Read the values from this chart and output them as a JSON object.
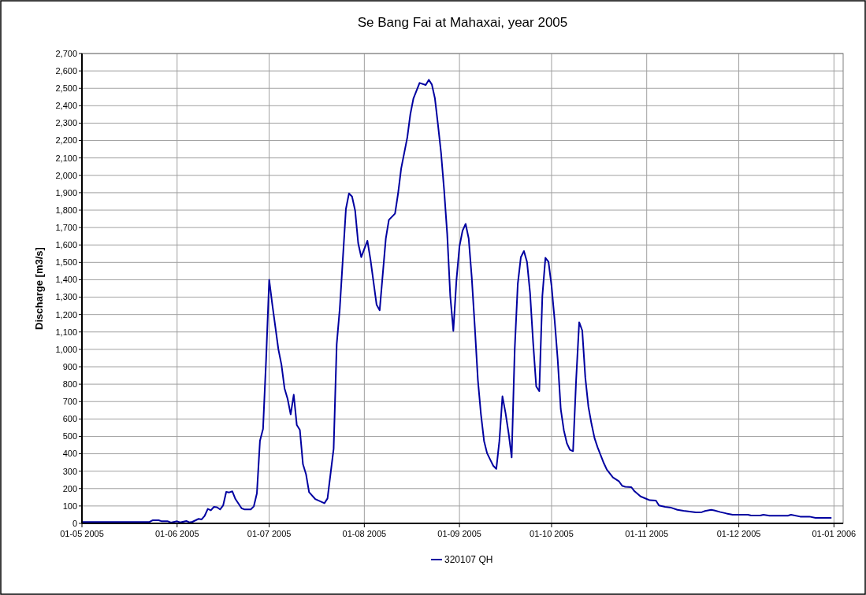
{
  "chart_data": {
    "type": "line",
    "title": "Se Bang Fai at Mahaxai, year 2005",
    "ylabel": "Discharge [m3/s]",
    "xlim": [
      "2005-05-01",
      "2006-01-04"
    ],
    "xticks": [
      {
        "value": "2005-05-01",
        "label": "01-05 2005"
      },
      {
        "value": "2005-06-01",
        "label": "01-06 2005"
      },
      {
        "value": "2005-07-01",
        "label": "01-07 2005"
      },
      {
        "value": "2005-08-01",
        "label": "01-08 2005"
      },
      {
        "value": "2005-09-01",
        "label": "01-09 2005"
      },
      {
        "value": "2005-10-01",
        "label": "01-10 2005"
      },
      {
        "value": "2005-11-01",
        "label": "01-11 2005"
      },
      {
        "value": "2005-12-01",
        "label": "01-12 2005"
      },
      {
        "value": "2006-01-01",
        "label": "01-01 2006"
      }
    ],
    "ylim": [
      0,
      2700
    ],
    "yticks": [
      0,
      100,
      200,
      300,
      400,
      500,
      600,
      700,
      800,
      900,
      {
        "value": 1000,
        "label": "1,000"
      },
      {
        "value": 1100,
        "label": "1,100"
      },
      {
        "value": 1200,
        "label": "1,200"
      },
      {
        "value": 1300,
        "label": "1,300"
      },
      {
        "value": 1400,
        "label": "1,400"
      },
      {
        "value": 1500,
        "label": "1,500"
      },
      {
        "value": 1600,
        "label": "1,600"
      },
      {
        "value": 1700,
        "label": "1,700"
      },
      {
        "value": 1800,
        "label": "1,800"
      },
      {
        "value": 1900,
        "label": "1,900"
      },
      {
        "value": 2000,
        "label": "2,000"
      },
      {
        "value": 2100,
        "label": "2,100"
      },
      {
        "value": 2200,
        "label": "2,200"
      },
      {
        "value": 2300,
        "label": "2,300"
      },
      {
        "value": 2400,
        "label": "2,400"
      },
      {
        "value": 2500,
        "label": "2,500"
      },
      {
        "value": 2600,
        "label": "2,600"
      },
      {
        "value": 2700,
        "label": "2,700"
      }
    ],
    "grid": true,
    "legend": "bottom",
    "marker": "none",
    "line_style": "solid",
    "series": [
      {
        "name": "320107 QH",
        "color": "#0000a0",
        "x": [
          "2005-05-01",
          "2005-05-23",
          "2005-05-24",
          "2005-05-26",
          "2005-05-27",
          "2005-05-29",
          "2005-05-30",
          "2005-06-01",
          "2005-06-02",
          "2005-06-04",
          "2005-06-05",
          "2005-06-06",
          "2005-06-08",
          "2005-06-09",
          "2005-06-10",
          "2005-06-11",
          "2005-06-12",
          "2005-06-13",
          "2005-06-14",
          "2005-06-15",
          "2005-06-16",
          "2005-06-17",
          "2005-06-18",
          "2005-06-19",
          "2005-06-20",
          "2005-06-22",
          "2005-06-23",
          "2005-06-25",
          "2005-06-26",
          "2005-06-27",
          "2005-06-28",
          "2005-06-29",
          "2005-06-30",
          "2005-07-01",
          "2005-07-02",
          "2005-07-04",
          "2005-07-05",
          "2005-07-06",
          "2005-07-07",
          "2005-07-08",
          "2005-07-09",
          "2005-07-10",
          "2005-07-11",
          "2005-07-12",
          "2005-07-13",
          "2005-07-14",
          "2005-07-16",
          "2005-07-19",
          "2005-07-20",
          "2005-07-22",
          "2005-07-23",
          "2005-07-24",
          "2005-07-26",
          "2005-07-27",
          "2005-07-28",
          "2005-07-29",
          "2005-07-30",
          "2005-07-31",
          "2005-08-02",
          "2005-08-03",
          "2005-08-05",
          "2005-08-06",
          "2005-08-08",
          "2005-08-09",
          "2005-08-11",
          "2005-08-12",
          "2005-08-13",
          "2005-08-15",
          "2005-08-16",
          "2005-08-17",
          "2005-08-19",
          "2005-08-21",
          "2005-08-22",
          "2005-08-23",
          "2005-08-24",
          "2005-08-25",
          "2005-08-26",
          "2005-08-27",
          "2005-08-28",
          "2005-08-29",
          "2005-08-30",
          "2005-08-31",
          "2005-09-01",
          "2005-09-02",
          "2005-09-03",
          "2005-09-04",
          "2005-09-05",
          "2005-09-06",
          "2005-09-07",
          "2005-09-08",
          "2005-09-09",
          "2005-09-10",
          "2005-09-11",
          "2005-09-12",
          "2005-09-13",
          "2005-09-14",
          "2005-09-15",
          "2005-09-16",
          "2005-09-17",
          "2005-09-18",
          "2005-09-19",
          "2005-09-20",
          "2005-09-21",
          "2005-09-22",
          "2005-09-23",
          "2005-09-24",
          "2005-09-25",
          "2005-09-26",
          "2005-09-27",
          "2005-09-28",
          "2005-09-29",
          "2005-09-30",
          "2005-10-01",
          "2005-10-02",
          "2005-10-03",
          "2005-10-04",
          "2005-10-05",
          "2005-10-06",
          "2005-10-07",
          "2005-10-08",
          "2005-10-09",
          "2005-10-10",
          "2005-10-11",
          "2005-10-12",
          "2005-10-13",
          "2005-10-14",
          "2005-10-15",
          "2005-10-16",
          "2005-10-17",
          "2005-10-18",
          "2005-10-19",
          "2005-10-21",
          "2005-10-23",
          "2005-10-24",
          "2005-10-25",
          "2005-10-27",
          "2005-10-28",
          "2005-10-30",
          "2005-11-01",
          "2005-11-02",
          "2005-11-04",
          "2005-11-05",
          "2005-11-07",
          "2005-11-09",
          "2005-11-11",
          "2005-11-13",
          "2005-11-15",
          "2005-11-17",
          "2005-11-19",
          "2005-11-20",
          "2005-11-22",
          "2005-11-23",
          "2005-11-25",
          "2005-11-27",
          "2005-11-29",
          "2005-12-04",
          "2005-12-05",
          "2005-12-08",
          "2005-12-09",
          "2005-12-11",
          "2005-12-17",
          "2005-12-18",
          "2005-12-21",
          "2005-12-24",
          "2005-12-26",
          "2005-12-31"
        ],
        "values": [
          8,
          8,
          18,
          18,
          12,
          12,
          5,
          12,
          6,
          14,
          6,
          9,
          26,
          23,
          44,
          83,
          75,
          95,
          93,
          80,
          103,
          181,
          178,
          184,
          140,
          87,
          80,
          80,
          98,
          173,
          475,
          543,
          942,
          1400,
          1260,
          1000,
          912,
          776,
          716,
          626,
          739,
          565,
          537,
          340,
          283,
          179,
          140,
          116,
          143,
          429,
          1029,
          1234,
          1807,
          1896,
          1878,
          1798,
          1610,
          1530,
          1624,
          1517,
          1256,
          1225,
          1637,
          1744,
          1780,
          1896,
          2039,
          2218,
          2352,
          2442,
          2531,
          2519,
          2549,
          2522,
          2442,
          2290,
          2129,
          1914,
          1664,
          1306,
          1106,
          1395,
          1592,
          1682,
          1721,
          1637,
          1413,
          1127,
          823,
          626,
          474,
          403,
          367,
          331,
          313,
          474,
          730,
          635,
          519,
          379,
          1002,
          1377,
          1530,
          1565,
          1503,
          1324,
          1038,
          787,
          760,
          1306,
          1526,
          1503,
          1364,
          1168,
          942,
          656,
          535,
          460,
          422,
          415,
          822,
          1156,
          1108,
          837,
          671,
          573,
          490,
          437,
          392,
          347,
          309,
          264,
          241,
          216,
          210,
          208,
          185,
          155,
          140,
          133,
          131,
          103,
          95,
          90,
          78,
          72,
          68,
          63,
          65,
          71,
          78,
          75,
          65,
          57,
          50,
          50,
          45,
          45,
          50,
          44,
          44,
          50,
          39,
          39,
          32,
          32
        ]
      }
    ]
  }
}
